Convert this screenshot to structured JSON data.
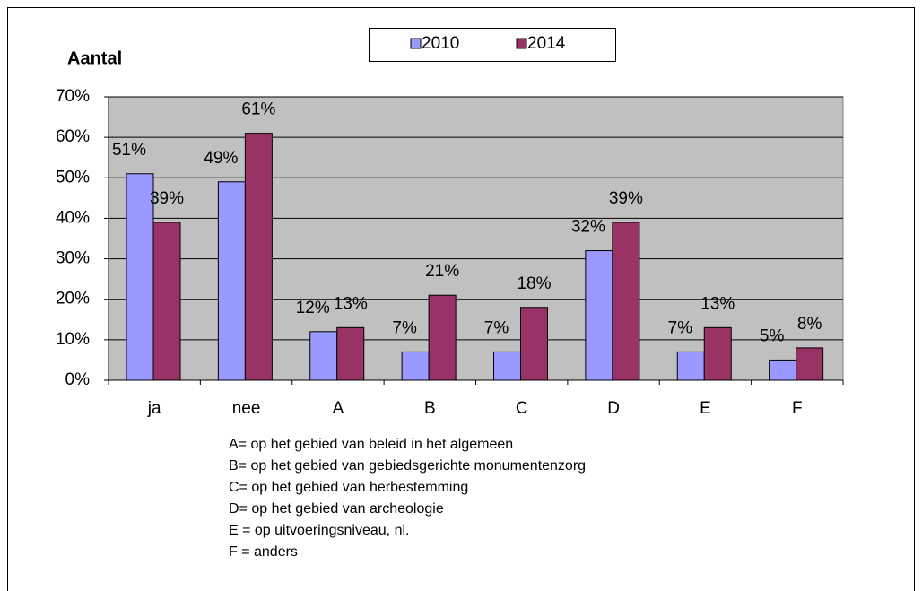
{
  "chart_data": {
    "type": "bar",
    "y_axis_label": "Aantal",
    "categories": [
      "ja",
      "nee",
      "A",
      "B",
      "C",
      "D",
      "E",
      "F"
    ],
    "series": [
      {
        "name": "2010",
        "color": "#9999ff",
        "values": [
          51,
          49,
          12,
          7,
          7,
          32,
          7,
          5
        ],
        "value_labels": [
          "51%",
          "49%",
          "12%",
          "7%",
          "7%",
          "32%",
          "7%",
          "5%"
        ]
      },
      {
        "name": "2014",
        "color": "#993366",
        "values": [
          39,
          61,
          13,
          21,
          18,
          39,
          13,
          8
        ],
        "value_labels": [
          "39%",
          "61%",
          "13%",
          "21%",
          "18%",
          "39%",
          "13%",
          "8%"
        ]
      }
    ],
    "ylim": [
      0,
      70
    ],
    "yticks": [
      {
        "value": 0,
        "label": "0%"
      },
      {
        "value": 10,
        "label": "10%"
      },
      {
        "value": 20,
        "label": "20%"
      },
      {
        "value": 30,
        "label": "30%"
      },
      {
        "value": 40,
        "label": "40%"
      },
      {
        "value": 50,
        "label": "50%"
      },
      {
        "value": 60,
        "label": "60%"
      },
      {
        "value": 70,
        "label": "70%"
      }
    ],
    "grid": true,
    "plot_background": "#c0c0c0",
    "legend_position": "top",
    "notes": [
      "A= op het gebied van beleid in het algemeen",
      "B= op het gebied van gebiedsgerichte monumentenzorg",
      "C= op het gebied van herbestemming",
      "D= op het gebied van archeologie",
      "E = op uitvoeringsniveau,  nl.",
      "F = anders"
    ]
  }
}
